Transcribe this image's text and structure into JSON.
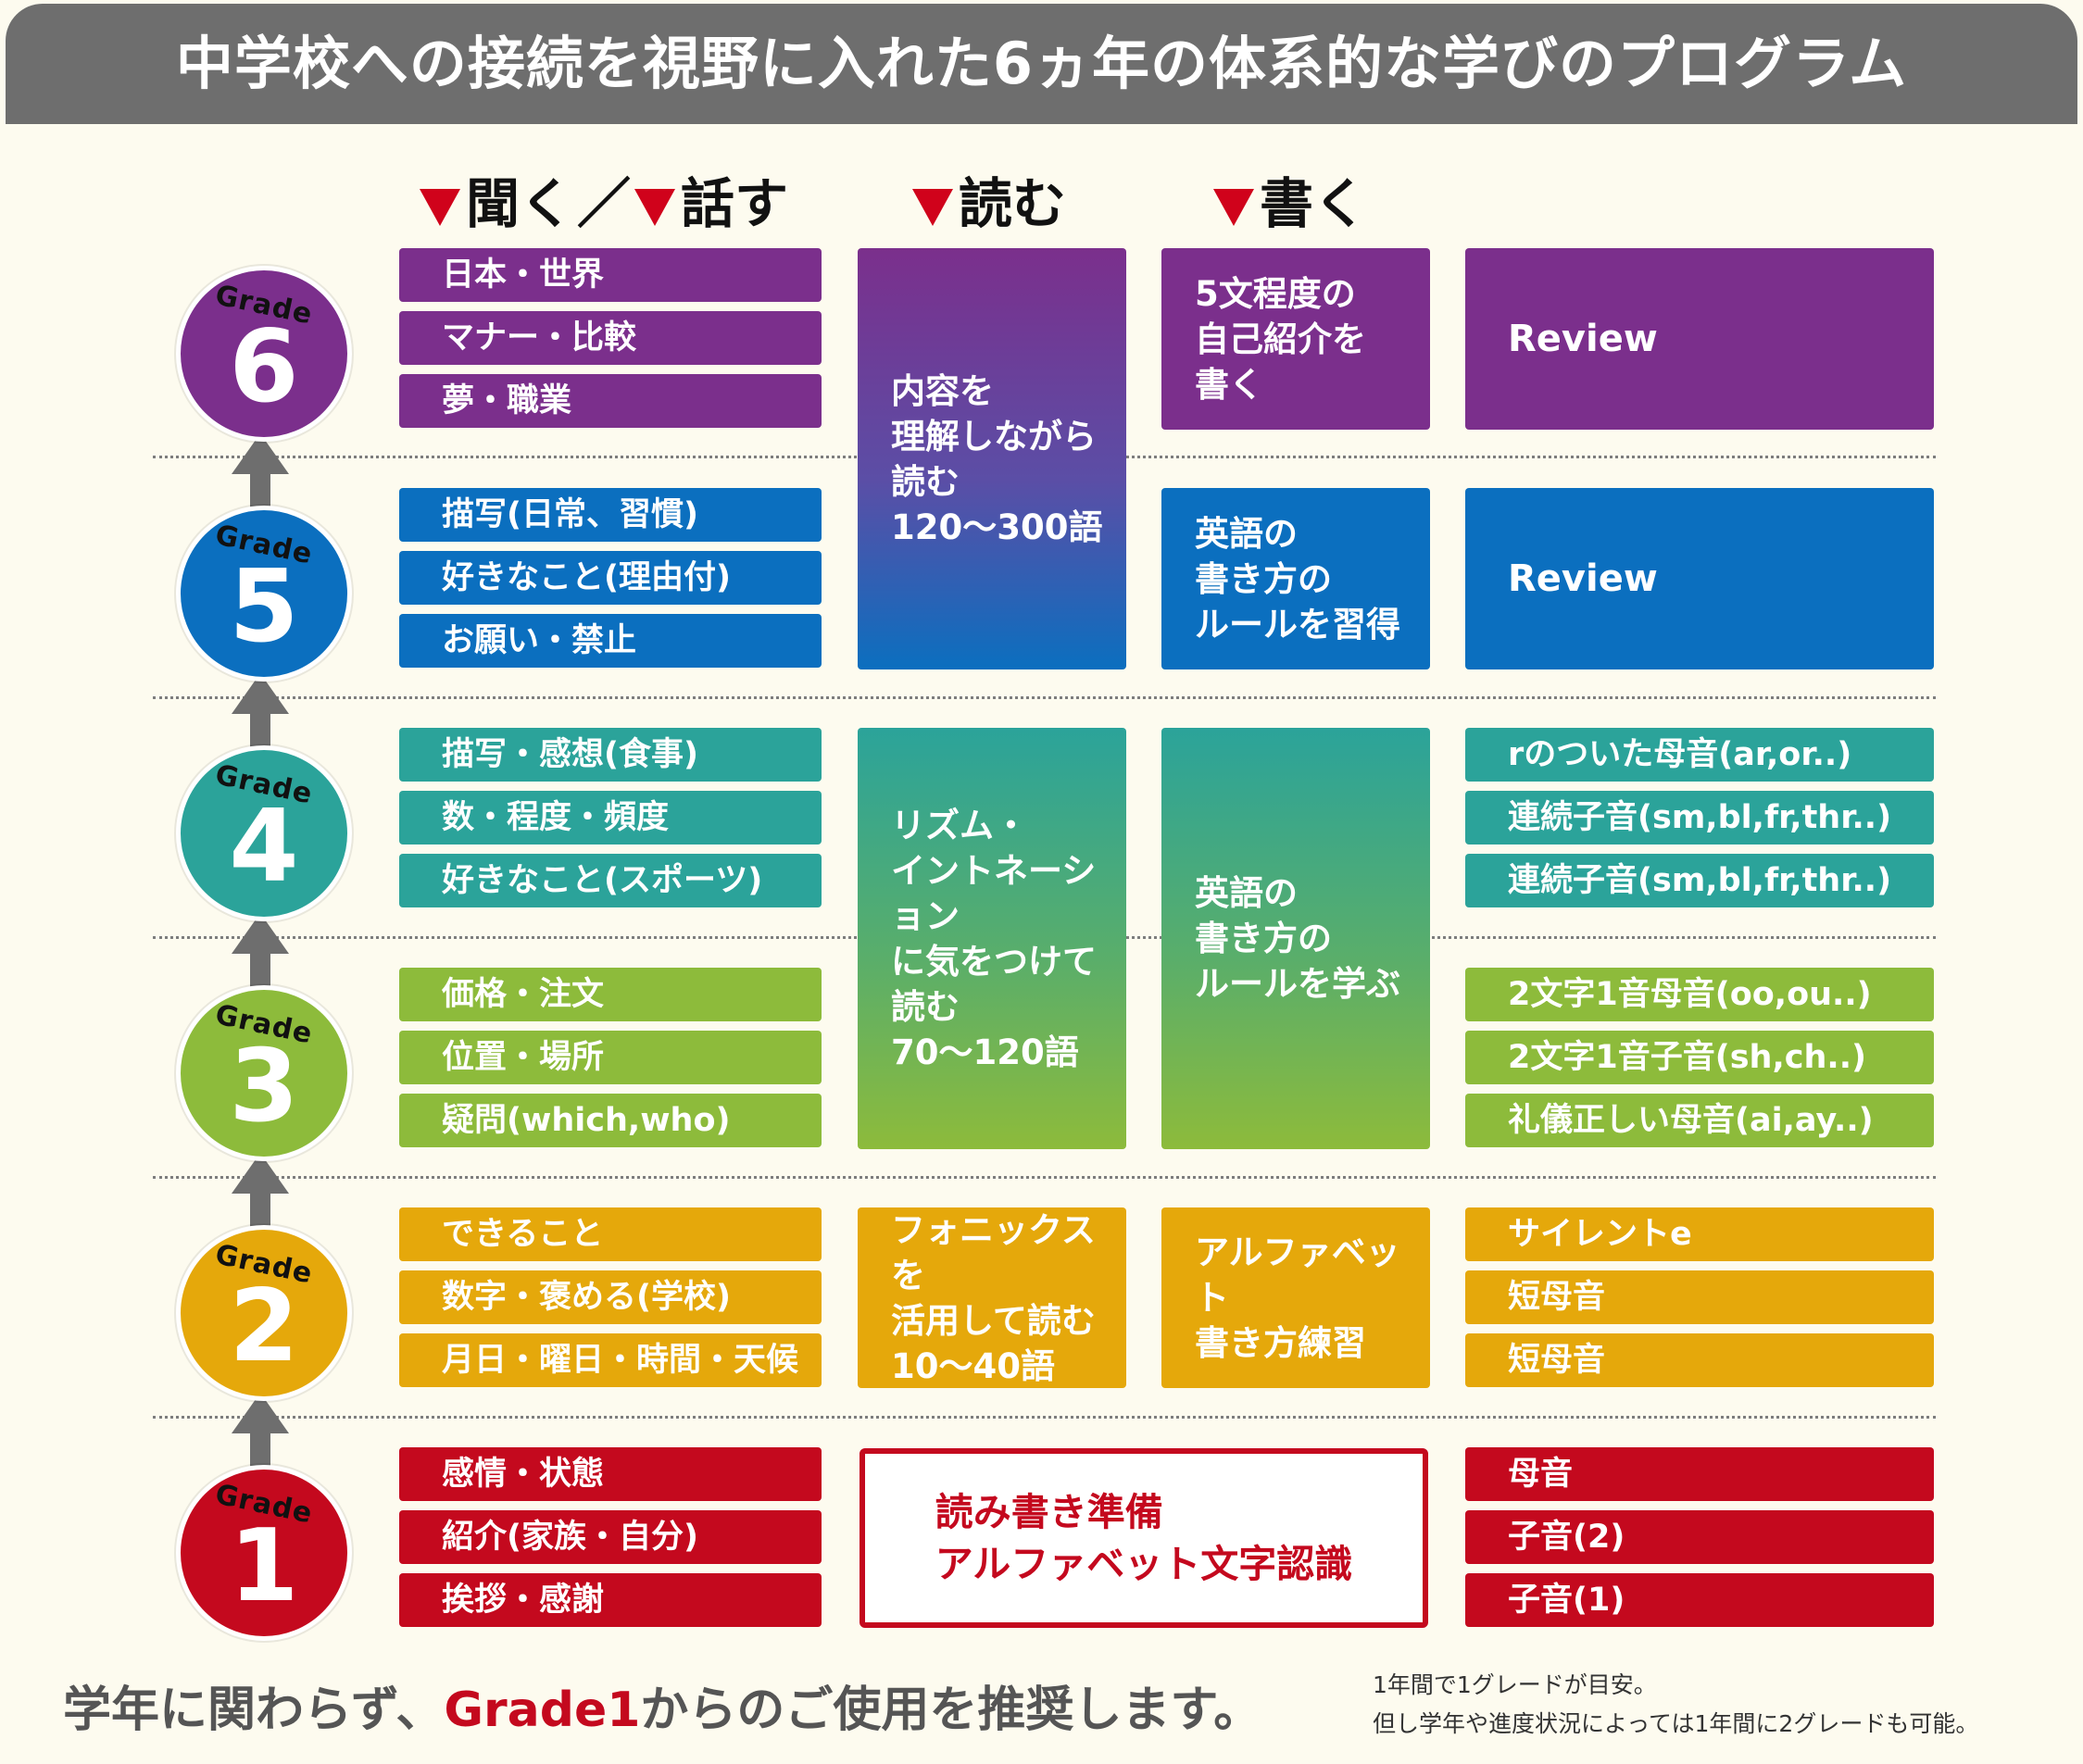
{
  "title": "中学校への接続を視野に入れた6ヵ年の体系的な学びのプログラム",
  "column_headers": {
    "listen": "聞く",
    "divider": "／",
    "speak": "話す",
    "read": "読む",
    "write": "書く"
  },
  "grade_word": "Grade",
  "colors": {
    "grade6": "#7b2f8c",
    "grade5": "#0b6fbf",
    "grade4": "#2ba39a",
    "grade3": "#8dbb3b",
    "grade2": "#e5a80b",
    "grade1": "#c4091e",
    "title_bar": "#6e6e6e",
    "triangle": "#d0021b"
  },
  "grades": [
    {
      "number": "6",
      "listening_speaking": [
        "日本・世界",
        "マナー・比較",
        "夢・職業"
      ],
      "writing": "5文程度の\n自己紹介を\n書く",
      "phonics_review": "Review"
    },
    {
      "number": "5",
      "listening_speaking": [
        "描写(日常、習慣)",
        "好きなこと(理由付)",
        "お願い・禁止"
      ],
      "writing": "英語の\n書き方の\nルールを習得",
      "phonics_review": "Review"
    },
    {
      "number": "4",
      "listening_speaking": [
        "描写・感想(食事)",
        "数・程度・頻度",
        "好きなこと(スポーツ)"
      ],
      "phonics": [
        "rのついた母音(ar,or..)",
        "連続子音(sm,bl,fr,thr..)",
        "連続子音(sm,bl,fr,thr..)"
      ]
    },
    {
      "number": "3",
      "listening_speaking": [
        "価格・注文",
        "位置・場所",
        "疑問(which,who)"
      ],
      "phonics": [
        "2文字1音母音(oo,ou..)",
        "2文字1音子音(sh,ch..)",
        "礼儀正しい母音(ai,ay..)"
      ]
    },
    {
      "number": "2",
      "listening_speaking": [
        "できること",
        "数字・褒める(学校)",
        "月日・曜日・時間・天候"
      ],
      "reading": "フォニックスを\n活用して読む\n10〜40語",
      "writing": "アルファベット\n書き方練習",
      "phonics": [
        "サイレントe",
        "短母音",
        "短母音"
      ]
    },
    {
      "number": "1",
      "listening_speaking": [
        "感情・状態",
        "紹介(家族・自分)",
        "挨拶・感謝"
      ],
      "phonics": [
        "母音",
        "子音(2)",
        "子音(1)"
      ]
    }
  ],
  "shared_blocks": {
    "reading_5_6": "内容を\n理解しながら\n読む\n120〜300語",
    "reading_3_4": "リズム・\nイントネーション\nに気をつけて\n読む\n70〜120語",
    "writing_3_4": "英語の\n書き方の\nルールを学ぶ",
    "grade1_prep": "読み書き準備\nアルファベット文字認識"
  },
  "footer": {
    "main_prefix": "学年に関わらず、",
    "main_accent": "Grade1",
    "main_suffix": "からのご使用を推奨します。",
    "note_line1": "1年間で1グレードが目安。",
    "note_line2": "但し学年や進度状況によっては1年間に2グレードも可能。"
  }
}
